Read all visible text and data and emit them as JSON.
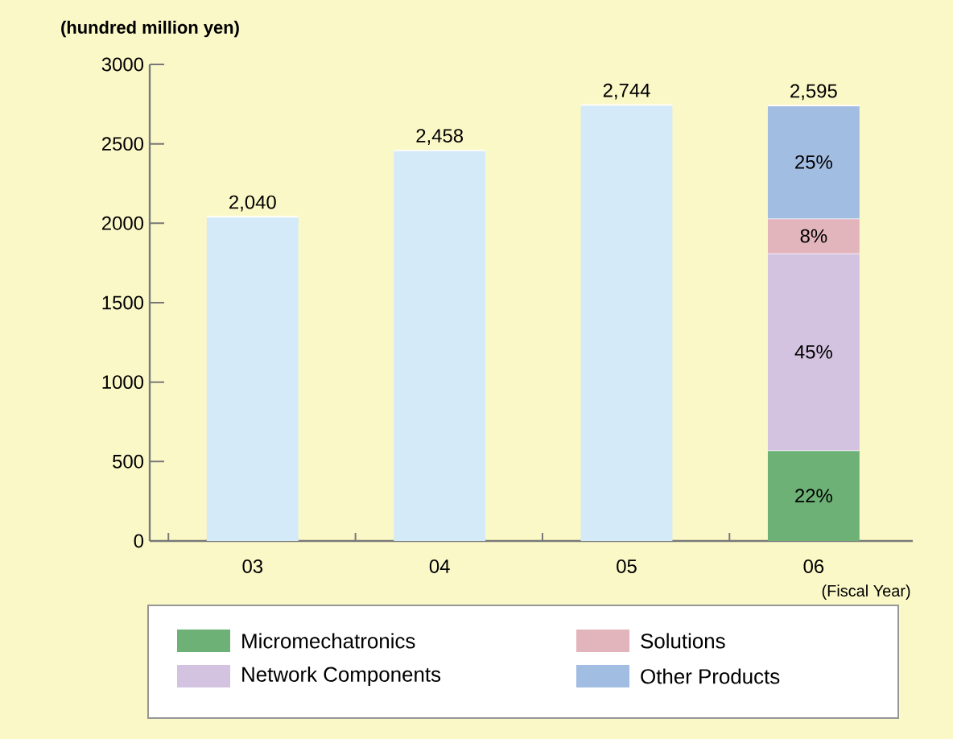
{
  "chart_data": {
    "type": "bar",
    "stacked": true,
    "ylabel": "(hundred million yen)",
    "xlabel": "(Fiscal Year)",
    "categories": [
      "03",
      "04",
      "05",
      "06"
    ],
    "series": [
      {
        "color": "#d4eaf8",
        "values": [
          2040,
          2458,
          2744,
          null
        ],
        "value_labels": [
          "2,040",
          "2,458",
          "2,744",
          null
        ]
      },
      {
        "name": "Micromechatronics",
        "color": "#6db176",
        "values": [
          null,
          null,
          null,
          570
        ]
      },
      {
        "name": "Network Components",
        "color": "#d3c3e0",
        "values": [
          null,
          null,
          null,
          1240
        ]
      },
      {
        "name": "Solutions",
        "color": "#e2b5bc",
        "values": [
          null,
          null,
          null,
          220
        ]
      },
      {
        "name": "Other Products",
        "color": "#a2bde2",
        "values": [
          null,
          null,
          null,
          710
        ]
      }
    ],
    "annotations": [
      "22%",
      "45%",
      "8%",
      "25%",
      {
        "text": "2,595",
        "x": "06",
        "y": 2740
      }
    ],
    "ylim": [
      0,
      3000
    ],
    "yticks": [
      0,
      500,
      1000,
      1500,
      2000,
      2500,
      3000
    ],
    "legend": "bottom"
  }
}
